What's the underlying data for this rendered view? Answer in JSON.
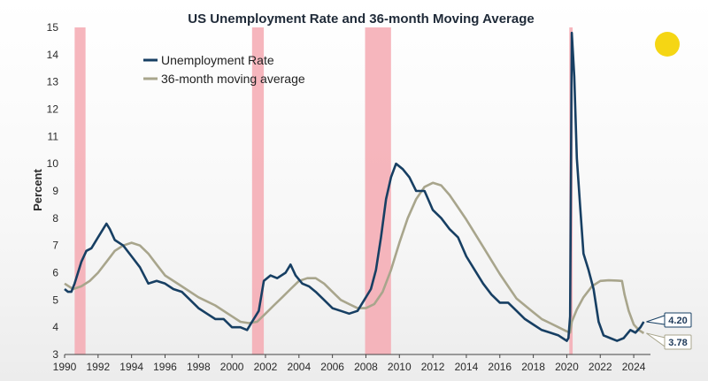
{
  "chart_data": {
    "type": "line",
    "title": "US Unemployment Rate and 36-month Moving Average",
    "xlabel": "",
    "ylabel": "Percent",
    "xlim": [
      1990,
      2025
    ],
    "ylim": [
      3,
      15
    ],
    "yticks": [
      3,
      4,
      5,
      6,
      7,
      8,
      9,
      10,
      11,
      12,
      13,
      14,
      15
    ],
    "xticks": [
      1990,
      1992,
      1994,
      1996,
      1998,
      2000,
      2002,
      2004,
      2006,
      2008,
      2010,
      2012,
      2014,
      2016,
      2018,
      2020,
      2022,
      2024
    ],
    "legend_position": "top-left",
    "recessions": [
      [
        1990.6,
        1991.25
      ],
      [
        2001.2,
        2001.9
      ],
      [
        2007.95,
        2009.5
      ],
      [
        2020.15,
        2020.35
      ]
    ],
    "series": [
      {
        "name": "Unemployment Rate",
        "color": "#173f63",
        "points": [
          [
            1990.0,
            5.4
          ],
          [
            1990.2,
            5.3
          ],
          [
            1990.4,
            5.3
          ],
          [
            1990.6,
            5.6
          ],
          [
            1990.8,
            6.0
          ],
          [
            1991.0,
            6.4
          ],
          [
            1991.3,
            6.8
          ],
          [
            1991.6,
            6.9
          ],
          [
            1992.0,
            7.3
          ],
          [
            1992.4,
            7.7
          ],
          [
            1992.5,
            7.8
          ],
          [
            1992.7,
            7.6
          ],
          [
            1993.0,
            7.2
          ],
          [
            1993.5,
            7.0
          ],
          [
            1994.0,
            6.6
          ],
          [
            1994.5,
            6.2
          ],
          [
            1995.0,
            5.6
          ],
          [
            1995.5,
            5.7
          ],
          [
            1996.0,
            5.6
          ],
          [
            1996.5,
            5.4
          ],
          [
            1997.0,
            5.3
          ],
          [
            1997.5,
            5.0
          ],
          [
            1998.0,
            4.7
          ],
          [
            1998.5,
            4.5
          ],
          [
            1999.0,
            4.3
          ],
          [
            1999.5,
            4.3
          ],
          [
            2000.0,
            4.0
          ],
          [
            2000.5,
            4.0
          ],
          [
            2000.9,
            3.9
          ],
          [
            2001.2,
            4.2
          ],
          [
            2001.6,
            4.6
          ],
          [
            2001.9,
            5.7
          ],
          [
            2002.3,
            5.9
          ],
          [
            2002.7,
            5.8
          ],
          [
            2003.2,
            6.0
          ],
          [
            2003.5,
            6.3
          ],
          [
            2003.8,
            5.9
          ],
          [
            2004.2,
            5.6
          ],
          [
            2004.6,
            5.5
          ],
          [
            2005.0,
            5.3
          ],
          [
            2005.5,
            5.0
          ],
          [
            2006.0,
            4.7
          ],
          [
            2006.5,
            4.6
          ],
          [
            2007.0,
            4.5
          ],
          [
            2007.5,
            4.6
          ],
          [
            2007.9,
            5.0
          ],
          [
            2008.3,
            5.4
          ],
          [
            2008.6,
            6.1
          ],
          [
            2008.9,
            7.3
          ],
          [
            2009.2,
            8.7
          ],
          [
            2009.5,
            9.5
          ],
          [
            2009.8,
            10.0
          ],
          [
            2010.2,
            9.8
          ],
          [
            2010.6,
            9.5
          ],
          [
            2011.0,
            9.0
          ],
          [
            2011.5,
            9.0
          ],
          [
            2012.0,
            8.3
          ],
          [
            2012.5,
            8.0
          ],
          [
            2013.0,
            7.6
          ],
          [
            2013.5,
            7.3
          ],
          [
            2014.0,
            6.6
          ],
          [
            2014.5,
            6.1
          ],
          [
            2015.0,
            5.6
          ],
          [
            2015.5,
            5.2
          ],
          [
            2016.0,
            4.9
          ],
          [
            2016.5,
            4.9
          ],
          [
            2017.0,
            4.6
          ],
          [
            2017.5,
            4.3
          ],
          [
            2018.0,
            4.1
          ],
          [
            2018.5,
            3.9
          ],
          [
            2019.0,
            3.8
          ],
          [
            2019.5,
            3.7
          ],
          [
            2020.0,
            3.5
          ],
          [
            2020.1,
            3.6
          ],
          [
            2020.2,
            4.4
          ],
          [
            2020.3,
            14.8
          ],
          [
            2020.45,
            13.2
          ],
          [
            2020.6,
            10.2
          ],
          [
            2020.8,
            8.4
          ],
          [
            2021.0,
            6.7
          ],
          [
            2021.3,
            6.1
          ],
          [
            2021.6,
            5.4
          ],
          [
            2021.9,
            4.2
          ],
          [
            2022.2,
            3.7
          ],
          [
            2022.6,
            3.6
          ],
          [
            2023.0,
            3.5
          ],
          [
            2023.4,
            3.6
          ],
          [
            2023.8,
            3.9
          ],
          [
            2024.1,
            3.8
          ],
          [
            2024.4,
            4.0
          ],
          [
            2024.6,
            4.2
          ]
        ]
      },
      {
        "name": "36-month moving average",
        "color": "#a8a58c",
        "points": [
          [
            1990.0,
            5.6
          ],
          [
            1990.5,
            5.4
          ],
          [
            1991.0,
            5.5
          ],
          [
            1991.5,
            5.7
          ],
          [
            1992.0,
            6.0
          ],
          [
            1992.5,
            6.4
          ],
          [
            1993.0,
            6.8
          ],
          [
            1993.5,
            7.0
          ],
          [
            1994.0,
            7.1
          ],
          [
            1994.5,
            7.0
          ],
          [
            1995.0,
            6.7
          ],
          [
            1995.5,
            6.3
          ],
          [
            1996.0,
            5.9
          ],
          [
            1997.0,
            5.5
          ],
          [
            1998.0,
            5.1
          ],
          [
            1999.0,
            4.8
          ],
          [
            2000.0,
            4.4
          ],
          [
            2000.5,
            4.2
          ],
          [
            2001.0,
            4.15
          ],
          [
            2001.5,
            4.2
          ],
          [
            2002.0,
            4.5
          ],
          [
            2002.5,
            4.8
          ],
          [
            2003.0,
            5.1
          ],
          [
            2003.5,
            5.4
          ],
          [
            2004.0,
            5.7
          ],
          [
            2004.5,
            5.8
          ],
          [
            2005.0,
            5.8
          ],
          [
            2005.5,
            5.6
          ],
          [
            2006.0,
            5.3
          ],
          [
            2006.5,
            5.0
          ],
          [
            2007.0,
            4.85
          ],
          [
            2007.5,
            4.7
          ],
          [
            2008.0,
            4.7
          ],
          [
            2008.5,
            4.85
          ],
          [
            2009.0,
            5.3
          ],
          [
            2009.5,
            6.1
          ],
          [
            2010.0,
            7.1
          ],
          [
            2010.5,
            8.0
          ],
          [
            2011.0,
            8.7
          ],
          [
            2011.5,
            9.15
          ],
          [
            2012.0,
            9.3
          ],
          [
            2012.5,
            9.2
          ],
          [
            2013.0,
            8.85
          ],
          [
            2013.5,
            8.4
          ],
          [
            2014.0,
            7.95
          ],
          [
            2014.5,
            7.45
          ],
          [
            2015.0,
            6.95
          ],
          [
            2015.5,
            6.45
          ],
          [
            2016.0,
            5.95
          ],
          [
            2016.5,
            5.5
          ],
          [
            2017.0,
            5.05
          ],
          [
            2017.5,
            4.8
          ],
          [
            2018.0,
            4.55
          ],
          [
            2018.5,
            4.3
          ],
          [
            2019.0,
            4.15
          ],
          [
            2019.5,
            4.0
          ],
          [
            2020.0,
            3.85
          ],
          [
            2020.2,
            3.8
          ],
          [
            2020.3,
            4.2
          ],
          [
            2020.6,
            4.65
          ],
          [
            2021.0,
            5.1
          ],
          [
            2021.5,
            5.5
          ],
          [
            2022.0,
            5.7
          ],
          [
            2022.5,
            5.72
          ],
          [
            2023.0,
            5.71
          ],
          [
            2023.3,
            5.7
          ],
          [
            2023.45,
            5.2
          ],
          [
            2023.7,
            4.6
          ],
          [
            2024.0,
            4.1
          ],
          [
            2024.3,
            3.9
          ],
          [
            2024.6,
            3.78
          ]
        ]
      }
    ],
    "end_labels": [
      {
        "value": 4.2,
        "text": "4.20",
        "series": 0
      },
      {
        "value": 3.78,
        "text": "3.78",
        "series": 1
      }
    ],
    "annotation_color": "#f5d614",
    "recession_color": "#f4a9b2"
  }
}
